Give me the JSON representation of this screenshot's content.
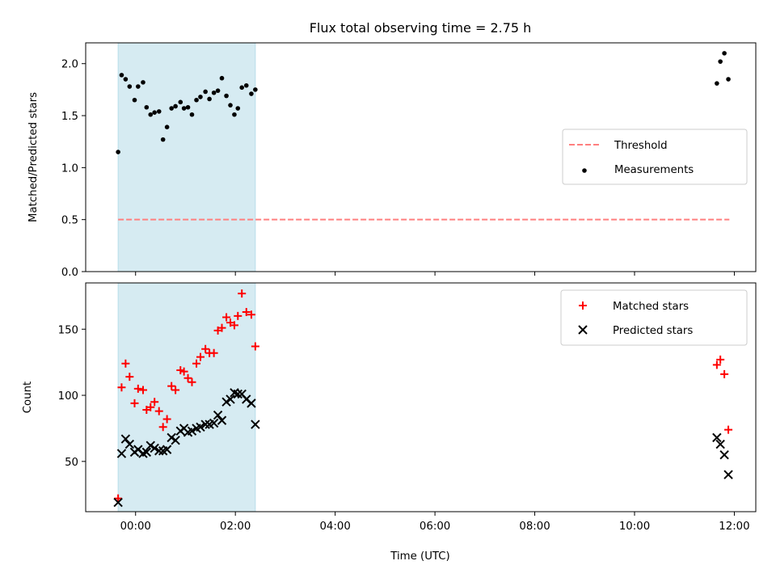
{
  "chart_data": {
    "title": "Flux total observing time = 2.75 h",
    "xlabel": "Time (UTC)",
    "x_unit": "hours UTC",
    "x_ticks": [
      {
        "value": 0,
        "label": "00:00"
      },
      {
        "value": 2,
        "label": "02:00"
      },
      {
        "value": 4,
        "label": "04:00"
      },
      {
        "value": 6,
        "label": "06:00"
      },
      {
        "value": 8,
        "label": "08:00"
      },
      {
        "value": 10,
        "label": "10:00"
      },
      {
        "value": 12,
        "label": "12:00"
      }
    ],
    "xlim": [
      -1.0,
      12.43
    ],
    "shaded_span": [
      -0.35,
      2.4
    ],
    "shade_color": "#add8e6",
    "panels": [
      {
        "type": "scatter",
        "ylabel": "Matched/Predicted stars",
        "ylim": [
          0,
          2.2
        ],
        "y_ticks": [
          {
            "value": 0.0,
            "label": "0.0"
          },
          {
            "value": 0.5,
            "label": "0.5"
          },
          {
            "value": 1.0,
            "label": "1.0"
          },
          {
            "value": 1.5,
            "label": "1.5"
          },
          {
            "value": 2.0,
            "label": "2.0"
          }
        ],
        "legend_position": "center-right",
        "threshold": {
          "name": "Threshold",
          "value": 0.5,
          "x_range": [
            -0.35,
            11.9
          ],
          "color": "#ff7f7f",
          "style": "dashed"
        },
        "series": [
          {
            "name": "Measurements",
            "marker": "dot",
            "color": "#000000",
            "points": [
              [
                -0.35,
                1.15
              ],
              [
                -0.28,
                1.89
              ],
              [
                -0.2,
                1.85
              ],
              [
                -0.12,
                1.78
              ],
              [
                -0.02,
                1.65
              ],
              [
                0.05,
                1.78
              ],
              [
                0.15,
                1.82
              ],
              [
                0.22,
                1.58
              ],
              [
                0.3,
                1.51
              ],
              [
                0.38,
                1.53
              ],
              [
                0.47,
                1.54
              ],
              [
                0.55,
                1.27
              ],
              [
                0.63,
                1.39
              ],
              [
                0.72,
                1.57
              ],
              [
                0.8,
                1.59
              ],
              [
                0.9,
                1.63
              ],
              [
                0.97,
                1.57
              ],
              [
                1.05,
                1.58
              ],
              [
                1.13,
                1.51
              ],
              [
                1.22,
                1.65
              ],
              [
                1.3,
                1.68
              ],
              [
                1.4,
                1.73
              ],
              [
                1.48,
                1.66
              ],
              [
                1.57,
                1.72
              ],
              [
                1.65,
                1.74
              ],
              [
                1.73,
                1.86
              ],
              [
                1.82,
                1.69
              ],
              [
                1.9,
                1.6
              ],
              [
                1.98,
                1.51
              ],
              [
                2.05,
                1.57
              ],
              [
                2.13,
                1.77
              ],
              [
                2.22,
                1.79
              ],
              [
                2.32,
                1.71
              ],
              [
                2.4,
                1.75
              ],
              [
                11.65,
                1.81
              ],
              [
                11.72,
                2.02
              ],
              [
                11.8,
                2.1
              ],
              [
                11.88,
                1.85
              ]
            ]
          }
        ]
      },
      {
        "type": "scatter",
        "ylabel": "Count",
        "ylim": [
          12,
          185
        ],
        "y_ticks": [
          {
            "value": 50,
            "label": "50"
          },
          {
            "value": 100,
            "label": "100"
          },
          {
            "value": 150,
            "label": "150"
          }
        ],
        "legend_position": "top-right",
        "series": [
          {
            "name": "Matched stars",
            "marker": "plus",
            "color": "#ff0000",
            "points": [
              [
                -0.35,
                22
              ],
              [
                -0.28,
                106
              ],
              [
                -0.2,
                124
              ],
              [
                -0.12,
                114
              ],
              [
                -0.02,
                94
              ],
              [
                0.05,
                105
              ],
              [
                0.15,
                104
              ],
              [
                0.22,
                89
              ],
              [
                0.3,
                91
              ],
              [
                0.38,
                95
              ],
              [
                0.47,
                88
              ],
              [
                0.55,
                76
              ],
              [
                0.63,
                82
              ],
              [
                0.72,
                107
              ],
              [
                0.8,
                104
              ],
              [
                0.9,
                119
              ],
              [
                0.97,
                118
              ],
              [
                1.05,
                113
              ],
              [
                1.13,
                110
              ],
              [
                1.22,
                124
              ],
              [
                1.3,
                129
              ],
              [
                1.4,
                135
              ],
              [
                1.48,
                132
              ],
              [
                1.57,
                132
              ],
              [
                1.65,
                149
              ],
              [
                1.73,
                151
              ],
              [
                1.82,
                159
              ],
              [
                1.9,
                155
              ],
              [
                1.98,
                153
              ],
              [
                2.05,
                160
              ],
              [
                2.13,
                177
              ],
              [
                2.22,
                163
              ],
              [
                2.32,
                161
              ],
              [
                2.4,
                137
              ],
              [
                11.65,
                123
              ],
              [
                11.72,
                127
              ],
              [
                11.8,
                116
              ],
              [
                11.88,
                74
              ]
            ]
          },
          {
            "name": "Predicted stars",
            "marker": "x",
            "color": "#000000",
            "points": [
              [
                -0.35,
                19
              ],
              [
                -0.28,
                56
              ],
              [
                -0.2,
                67
              ],
              [
                -0.12,
                63
              ],
              [
                -0.02,
                57
              ],
              [
                0.05,
                59
              ],
              [
                0.15,
                56
              ],
              [
                0.22,
                57
              ],
              [
                0.3,
                62
              ],
              [
                0.38,
                60
              ],
              [
                0.47,
                58
              ],
              [
                0.55,
                58
              ],
              [
                0.63,
                59
              ],
              [
                0.72,
                68
              ],
              [
                0.8,
                66
              ],
              [
                0.9,
                73
              ],
              [
                0.97,
                75
              ],
              [
                1.05,
                72
              ],
              [
                1.13,
                73
              ],
              [
                1.22,
                75
              ],
              [
                1.3,
                76
              ],
              [
                1.4,
                78
              ],
              [
                1.48,
                78
              ],
              [
                1.57,
                79
              ],
              [
                1.65,
                85
              ],
              [
                1.73,
                81
              ],
              [
                1.82,
                95
              ],
              [
                1.9,
                97
              ],
              [
                1.98,
                102
              ],
              [
                2.05,
                101
              ],
              [
                2.13,
                101
              ],
              [
                2.22,
                97
              ],
              [
                2.32,
                94
              ],
              [
                2.4,
                78
              ],
              [
                11.65,
                68
              ],
              [
                11.72,
                63
              ],
              [
                11.8,
                55
              ],
              [
                11.88,
                40
              ]
            ]
          }
        ]
      }
    ]
  }
}
